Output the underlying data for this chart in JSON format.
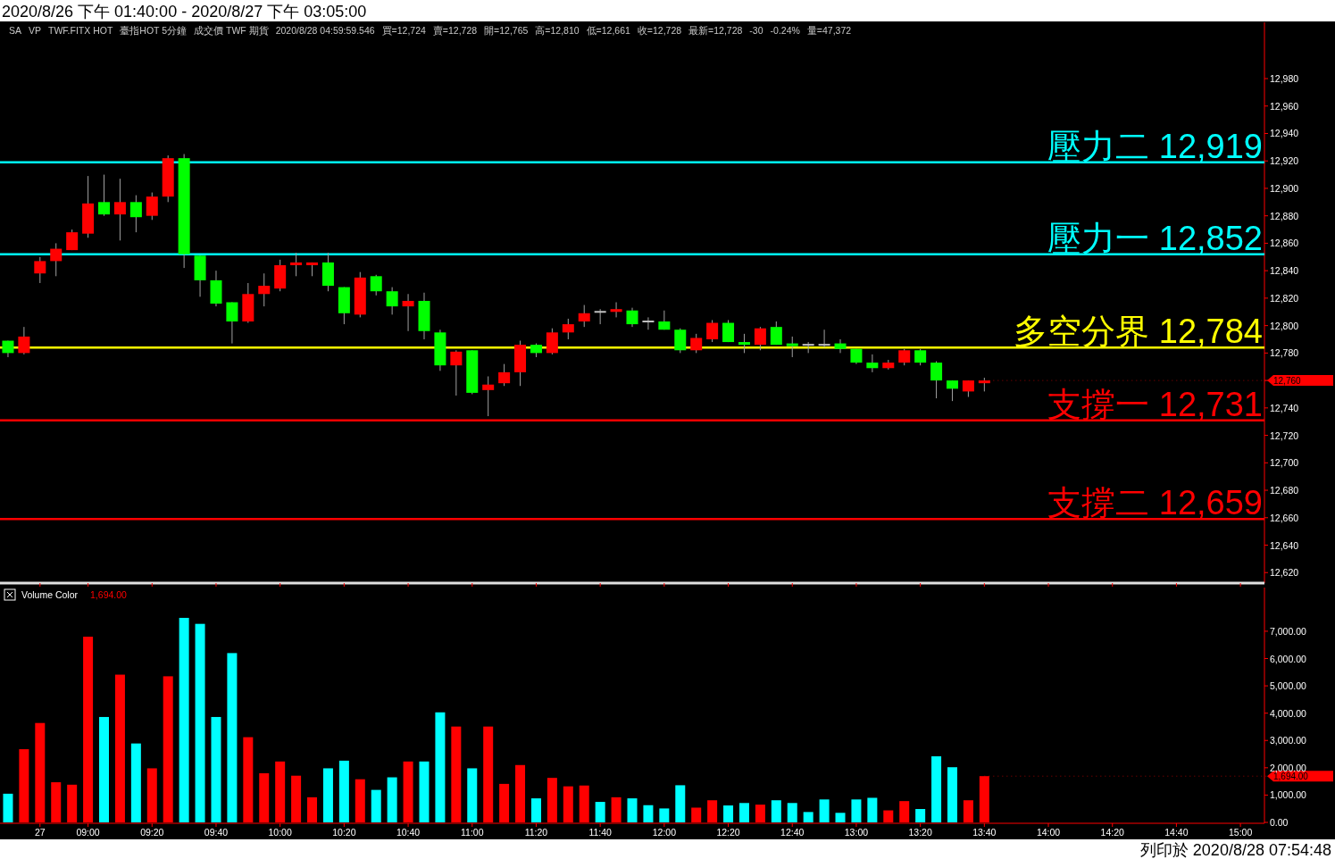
{
  "chart_data": [
    {
      "type": "candlestick",
      "title": "2020/8/26 下午 01:40:00 - 2020/8/27 下午 03:05:00",
      "categories": [
        null,
        null,
        "27",
        null,
        null,
        "09:00",
        null,
        null,
        null,
        "09:20",
        null,
        null,
        null,
        "09:40",
        null,
        null,
        null,
        "10:00",
        null,
        null,
        null,
        "10:20",
        null,
        null,
        null,
        "10:40",
        null,
        null,
        null,
        "11:00",
        null,
        null,
        null,
        "11:20",
        null,
        null,
        null,
        "11:40",
        null,
        null,
        null,
        "12:00",
        null,
        null,
        null,
        "12:20",
        null,
        null,
        null,
        "12:40",
        null,
        null,
        null,
        "13:00",
        null,
        null,
        null,
        "13:20",
        null,
        null,
        null,
        "13:40",
        null,
        null,
        null,
        "14:00",
        null,
        null,
        null,
        "14:20",
        null,
        null,
        null,
        "14:40",
        null,
        null,
        null,
        "15:00",
        null
      ],
      "ohlc": [
        [
          12789,
          12789,
          12777,
          12780
        ],
        [
          12780,
          12799,
          12779,
          12792
        ],
        [
          12838,
          12850,
          12831,
          12847
        ],
        [
          12847,
          12860,
          12836,
          12856
        ],
        [
          12855,
          12870,
          12855,
          12868
        ],
        [
          12867,
          12909,
          12864,
          12889
        ],
        [
          12890,
          12910,
          12880,
          12881
        ],
        [
          12881,
          12907,
          12862,
          12890
        ],
        [
          12890,
          12895,
          12868,
          12879
        ],
        [
          12880,
          12897,
          12877,
          12894
        ],
        [
          12894,
          12924,
          12890,
          12922
        ],
        [
          12922,
          12925,
          12842,
          12852
        ],
        [
          12851,
          12851,
          12821,
          12833
        ],
        [
          12833,
          12840,
          12814,
          12816
        ],
        [
          12817,
          12817,
          12787,
          12803
        ],
        [
          12803,
          12831,
          12802,
          12823
        ],
        [
          12823,
          12838,
          12814,
          12829
        ],
        [
          12827,
          12848,
          12825,
          12844
        ],
        [
          12844,
          12853,
          12836,
          12846
        ],
        [
          12844,
          12846,
          12836,
          12846
        ],
        [
          12846,
          12853,
          12825,
          12829
        ],
        [
          12828,
          12828,
          12801,
          12809
        ],
        [
          12808,
          12839,
          12806,
          12835
        ],
        [
          12836,
          12837,
          12822,
          12825
        ],
        [
          12825,
          12828,
          12808,
          12814
        ],
        [
          12814,
          12823,
          12796,
          12818
        ],
        [
          12818,
          12824,
          12790,
          12796
        ],
        [
          12795,
          12797,
          12767,
          12771
        ],
        [
          12771,
          12782,
          12749,
          12781
        ],
        [
          12782,
          12782,
          12750,
          12751
        ],
        [
          12753,
          12763,
          12734,
          12757
        ],
        [
          12758,
          12772,
          12756,
          12766
        ],
        [
          12766,
          12789,
          12756,
          12786
        ],
        [
          12786,
          12787,
          12777,
          12780
        ],
        [
          12780,
          12798,
          12779,
          12795
        ],
        [
          12795,
          12805,
          12790,
          12801
        ],
        [
          12803,
          12815,
          12799,
          12809
        ],
        [
          12810,
          12812,
          12801,
          12810
        ],
        [
          12810,
          12817,
          12806,
          12812
        ],
        [
          12811,
          12813,
          12799,
          12801
        ],
        [
          12803,
          12806,
          12797,
          12803
        ],
        [
          12803,
          12811,
          12797,
          12797
        ],
        [
          12797,
          12798,
          12780,
          12782
        ],
        [
          12782,
          12794,
          12780,
          12791
        ],
        [
          12790,
          12804,
          12788,
          12802
        ],
        [
          12802,
          12804,
          12788,
          12788
        ],
        [
          12788,
          12794,
          12780,
          12786
        ],
        [
          12786,
          12799,
          12782,
          12798
        ],
        [
          12799,
          12803,
          12786,
          12786
        ],
        [
          12787,
          12792,
          12777,
          12785
        ],
        [
          12786,
          12788,
          12780,
          12786
        ],
        [
          12786,
          12797,
          12784,
          12786
        ],
        [
          12787,
          12790,
          12780,
          12783
        ],
        [
          12783,
          12783,
          12772,
          12773
        ],
        [
          12773,
          12779,
          12766,
          12769
        ],
        [
          12769,
          12775,
          12768,
          12773
        ],
        [
          12773,
          12783,
          12771,
          12782
        ],
        [
          12782,
          12783,
          12771,
          12773
        ],
        [
          12773,
          12774,
          12747,
          12760
        ],
        [
          12760,
          12760,
          12745,
          12754
        ],
        [
          12752,
          12760,
          12748,
          12760
        ],
        [
          12758,
          12762,
          12752,
          12760
        ],
        null,
        null,
        null,
        null,
        null,
        null,
        null,
        null,
        null,
        null,
        null,
        null,
        null,
        null,
        null,
        null,
        null
      ],
      "colors": [
        "#00ff00",
        "#ff0000",
        "#ff0000",
        "#ff0000",
        "#ff0000",
        "#ff0000",
        "#00ff00",
        "#ff0000",
        "#00ff00",
        "#ff0000",
        "#ff0000",
        "#00ff00",
        "#00ff00",
        "#00ff00",
        "#00ff00",
        "#ff0000",
        "#ff0000",
        "#ff0000",
        "#ff0000",
        "#ff0000",
        "#00ff00",
        "#00ff00",
        "#ff0000",
        "#00ff00",
        "#00ff00",
        "#ff0000",
        "#00ff00",
        "#00ff00",
        "#ff0000",
        "#00ff00",
        "#ff0000",
        "#ff0000",
        "#ff0000",
        "#00ff00",
        "#ff0000",
        "#ff0000",
        "#ff0000",
        "#c0c0c0",
        "#ff0000",
        "#00ff00",
        "#c0c0c0",
        "#00ff00",
        "#00ff00",
        "#ff0000",
        "#ff0000",
        "#00ff00",
        "#00ff00",
        "#ff0000",
        "#00ff00",
        "#00ff00",
        "#c0c0c0",
        "#c0c0c0",
        "#00ff00",
        "#00ff00",
        "#00ff00",
        "#ff0000",
        "#ff0000",
        "#00ff00",
        "#00ff00",
        "#00ff00",
        "#ff0000",
        "#ff0000",
        null,
        null,
        null,
        null,
        null,
        null,
        null,
        null,
        null,
        null,
        null,
        null,
        null,
        null,
        null,
        null,
        null
      ],
      "ylim": [
        12613,
        13021
      ],
      "yticks": [
        {
          "value": 12620,
          "label": "12,620"
        },
        {
          "value": 12640,
          "label": "12,640"
        },
        {
          "value": 12660,
          "label": "12,660"
        },
        {
          "value": 12680,
          "label": "12,680"
        },
        {
          "value": 12700,
          "label": "12,700"
        },
        {
          "value": 12720,
          "label": "12,720"
        },
        {
          "value": 12740,
          "label": "12,740"
        },
        {
          "value": 12760,
          "label": null
        },
        {
          "value": 12780,
          "label": "12,780"
        },
        {
          "value": 12800,
          "label": "12,800"
        },
        {
          "value": 12820,
          "label": "12,820"
        },
        {
          "value": 12840,
          "label": "12,840"
        },
        {
          "value": 12860,
          "label": "12,860"
        },
        {
          "value": 12880,
          "label": "12,880"
        },
        {
          "value": 12900,
          "label": "12,900"
        },
        {
          "value": 12920,
          "label": "12,920"
        },
        {
          "value": 12940,
          "label": "12,940"
        },
        {
          "value": 12960,
          "label": "12,960"
        },
        {
          "value": 12980,
          "label": "12,980"
        }
      ],
      "tick_labels": "y",
      "ref_lines": [
        {
          "axis": "y",
          "value": 12919,
          "label": "壓力二 12,919",
          "color": "#00ffff"
        },
        {
          "axis": "y",
          "value": 12852,
          "label": "壓力一 12,852",
          "color": "#00ffff"
        },
        {
          "axis": "y",
          "value": 12784,
          "label": "多空分界 12,784",
          "color": "#ffff00"
        },
        {
          "axis": "y",
          "value": 12731,
          "label": "支撐一 12,731",
          "color": "#ff0000"
        },
        {
          "axis": "y",
          "value": 12659,
          "label": "支撐二 12,659",
          "color": "#ff0000"
        }
      ],
      "annotations": [
        "SA",
        "VP",
        "TWF.FITX HOT",
        "臺指HOT 5分鐘",
        "成交價 TWF 期貨",
        "2020/8/28 04:59:59.546",
        "買=12,724",
        "賣=12,728",
        "開=12,765",
        "高=12,810",
        "低=12,661",
        "收=12,728",
        "最新=12,728",
        "-30",
        "-0.24%",
        "量=47,372",
        {
          "text": "12,760",
          "x": "13:40",
          "y": 12760
        }
      ]
    },
    {
      "type": "bar",
      "title": "Volume Color",
      "subtitle": "1,694.00",
      "categories": [
        null,
        null,
        "27",
        null,
        null,
        "09:00",
        null,
        null,
        null,
        "09:20",
        null,
        null,
        null,
        "09:40",
        null,
        null,
        null,
        "10:00",
        null,
        null,
        null,
        "10:20",
        null,
        null,
        null,
        "10:40",
        null,
        null,
        null,
        "11:00",
        null,
        null,
        null,
        "11:20",
        null,
        null,
        null,
        "11:40",
        null,
        null,
        null,
        "12:00",
        null,
        null,
        null,
        "12:20",
        null,
        null,
        null,
        "12:40",
        null,
        null,
        null,
        "13:00",
        null,
        null,
        null,
        "13:20",
        null,
        null,
        null,
        "13:40",
        null,
        null,
        null,
        "14:00",
        null,
        null,
        null,
        "14:20",
        null,
        null,
        null,
        "14:40",
        null,
        null,
        null,
        "15:00",
        null
      ],
      "values": [
        1050,
        2680,
        3640,
        1470,
        1380,
        6800,
        3860,
        5410,
        2890,
        1980,
        5350,
        7490,
        7270,
        3860,
        6200,
        3120,
        1800,
        2230,
        1710,
        920,
        1980,
        2260,
        1580,
        1190,
        1650,
        2230,
        2230,
        4030,
        3510,
        1980,
        3510,
        1410,
        2100,
        880,
        1630,
        1320,
        1350,
        750,
        920,
        880,
        630,
        510,
        1360,
        540,
        810,
        620,
        710,
        650,
        810,
        710,
        380,
        840,
        350,
        840,
        900,
        440,
        780,
        490,
        2420,
        2020,
        810,
        1694,
        null,
        null,
        null,
        null,
        null,
        null,
        null,
        null,
        null,
        null,
        null,
        null,
        null,
        null,
        null,
        null,
        null
      ],
      "colors": [
        "#00ffff",
        "#ff0000",
        "#ff0000",
        "#ff0000",
        "#ff0000",
        "#ff0000",
        "#00ffff",
        "#ff0000",
        "#00ffff",
        "#ff0000",
        "#ff0000",
        "#00ffff",
        "#00ffff",
        "#00ffff",
        "#00ffff",
        "#ff0000",
        "#ff0000",
        "#ff0000",
        "#ff0000",
        "#ff0000",
        "#00ffff",
        "#00ffff",
        "#ff0000",
        "#00ffff",
        "#00ffff",
        "#ff0000",
        "#00ffff",
        "#00ffff",
        "#ff0000",
        "#00ffff",
        "#ff0000",
        "#ff0000",
        "#ff0000",
        "#00ffff",
        "#ff0000",
        "#ff0000",
        "#ff0000",
        "#00ffff",
        "#ff0000",
        "#00ffff",
        "#00ffff",
        "#00ffff",
        "#00ffff",
        "#ff0000",
        "#ff0000",
        "#00ffff",
        "#00ffff",
        "#ff0000",
        "#00ffff",
        "#00ffff",
        "#00ffff",
        "#00ffff",
        "#00ffff",
        "#00ffff",
        "#00ffff",
        "#ff0000",
        "#ff0000",
        "#00ffff",
        "#00ffff",
        "#00ffff",
        "#ff0000",
        "#ff0000",
        null,
        null,
        null,
        null,
        null,
        null,
        null,
        null,
        null,
        null,
        null,
        null,
        null,
        null,
        null,
        null,
        null
      ],
      "ylim": [
        0,
        8600
      ],
      "yticks": [
        {
          "value": 0,
          "label": "0.00"
        },
        {
          "value": 1000,
          "label": "1,000.00"
        },
        {
          "value": 2000,
          "label": "2,000.00"
        },
        {
          "value": 3000,
          "label": "3,000.00"
        },
        {
          "value": 4000,
          "label": "4,000.00"
        },
        {
          "value": 5000,
          "label": "5,000.00"
        },
        {
          "value": 6000,
          "label": "6,000.00"
        },
        {
          "value": 7000,
          "label": "7,000.00"
        }
      ],
      "annotations": [
        "列印於 2020/8/28 07:54:48",
        {
          "text": "1,694.00",
          "x": "13:40",
          "y": 1694
        }
      ]
    }
  ]
}
